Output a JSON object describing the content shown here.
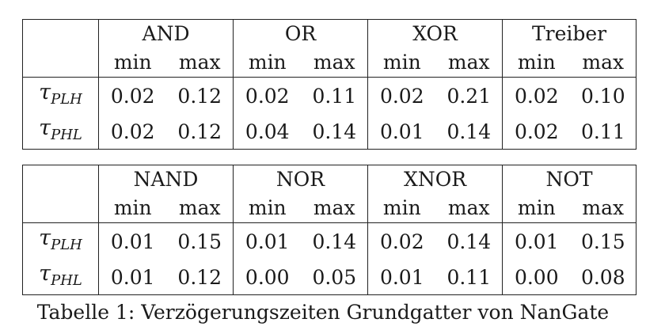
{
  "tables": [
    {
      "gates": [
        "AND",
        "OR",
        "XOR",
        "Treiber"
      ],
      "subheaders": [
        "min",
        "max"
      ],
      "rows": [
        {
          "symbol": "τ",
          "sub": "PLH",
          "values": [
            "0.02",
            "0.12",
            "0.02",
            "0.11",
            "0.02",
            "0.21",
            "0.02",
            "0.10"
          ]
        },
        {
          "symbol": "τ",
          "sub": "PHL",
          "values": [
            "0.02",
            "0.12",
            "0.04",
            "0.14",
            "0.01",
            "0.14",
            "0.02",
            "0.11"
          ]
        }
      ]
    },
    {
      "gates": [
        "NAND",
        "NOR",
        "XNOR",
        "NOT"
      ],
      "subheaders": [
        "min",
        "max"
      ],
      "rows": [
        {
          "symbol": "τ",
          "sub": "PLH",
          "values": [
            "0.01",
            "0.15",
            "0.01",
            "0.14",
            "0.02",
            "0.14",
            "0.01",
            "0.15"
          ]
        },
        {
          "symbol": "τ",
          "sub": "PHL",
          "values": [
            "0.01",
            "0.12",
            "0.00",
            "0.05",
            "0.01",
            "0.11",
            "0.00",
            "0.08"
          ]
        }
      ]
    }
  ],
  "caption": "Tabelle 1: Verzögerungszeiten Grundgatter von NanGate"
}
